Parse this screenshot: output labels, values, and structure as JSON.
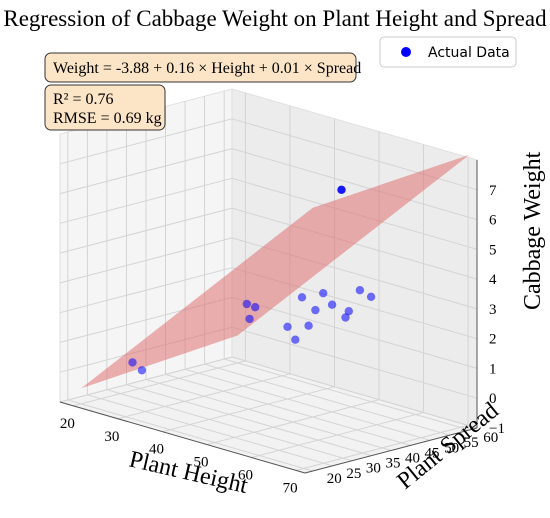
{
  "chart_data": {
    "type": "scatter",
    "title": "Regression of Cabbage Weight on Plant Height and Spread",
    "xlabel": "Plant Height",
    "ylabel": "Plant Spread",
    "zlabel": "Cabbage Weight",
    "xlim": [
      17,
      72
    ],
    "ylim": [
      18,
      62
    ],
    "zlim": [
      -1,
      8
    ],
    "xticks": [
      20,
      30,
      40,
      50,
      60,
      70
    ],
    "yticks": [
      20,
      25,
      30,
      35,
      40,
      45,
      50,
      55,
      60
    ],
    "zticks": [
      -1,
      0,
      1,
      2,
      3,
      4,
      5,
      6,
      7
    ],
    "grid": true,
    "legend": {
      "position": "top-right",
      "entries": [
        {
          "label": "Actual Data",
          "color": "#0000ff"
        }
      ]
    },
    "annotations": {
      "equation": "Weight = -3.88 + 0.16 × Height + 0.01 × Spread",
      "r2": "R² = 0.76",
      "rmse": "RMSE = 0.69 kg"
    },
    "regression_plane": {
      "intercept": -3.88,
      "coef_height": 0.16,
      "coef_spread": 0.01,
      "x_range": [
        20,
        72
      ],
      "y_range": [
        20,
        60
      ],
      "color": "#e06666"
    },
    "series": [
      {
        "name": "Actual Data",
        "color": "#0000ff",
        "points": [
          [
            28,
            24,
            0.6
          ],
          [
            31,
            23,
            0.5
          ],
          [
            37,
            43,
            2.3
          ],
          [
            38,
            44,
            2.2
          ],
          [
            38.5,
            42,
            1.9
          ],
          [
            47,
            42,
            2.0
          ],
          [
            47,
            44,
            1.5
          ],
          [
            50,
            44,
            2.1
          ],
          [
            48,
            48,
            2.4
          ],
          [
            50,
            50,
            2.6
          ],
          [
            52,
            52,
            2.4
          ],
          [
            53,
            50,
            2.3
          ],
          [
            45,
            48,
            2.7
          ],
          [
            48,
            50,
            2.9
          ],
          [
            57,
            52,
            3.1
          ],
          [
            58,
            48,
            3.5
          ],
          [
            60,
            41,
            7.2
          ]
        ]
      }
    ]
  }
}
